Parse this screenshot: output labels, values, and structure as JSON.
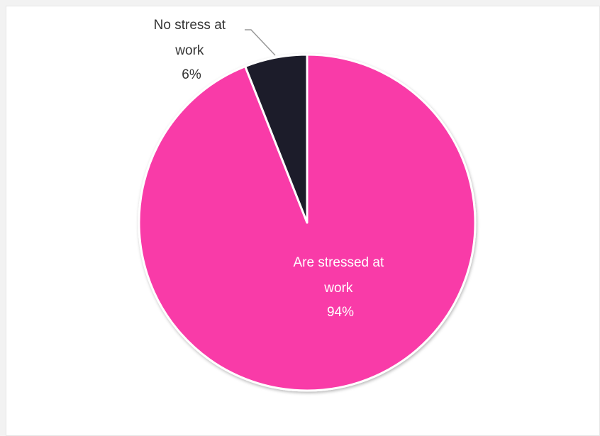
{
  "chart_data": {
    "type": "pie",
    "title": "",
    "slices": [
      {
        "line1": "Are stressed at",
        "line2": "work",
        "percent_label": "94%",
        "value": 94,
        "color": "#f93ba8",
        "label_color": "#ffffff"
      },
      {
        "line1": "No stress at",
        "line2": "work",
        "percent_label": "6%",
        "value": 6,
        "color": "#1e1f2b",
        "label_color": "#333333"
      }
    ],
    "border_color": "#ffffff",
    "start_angle_deg": 0
  }
}
